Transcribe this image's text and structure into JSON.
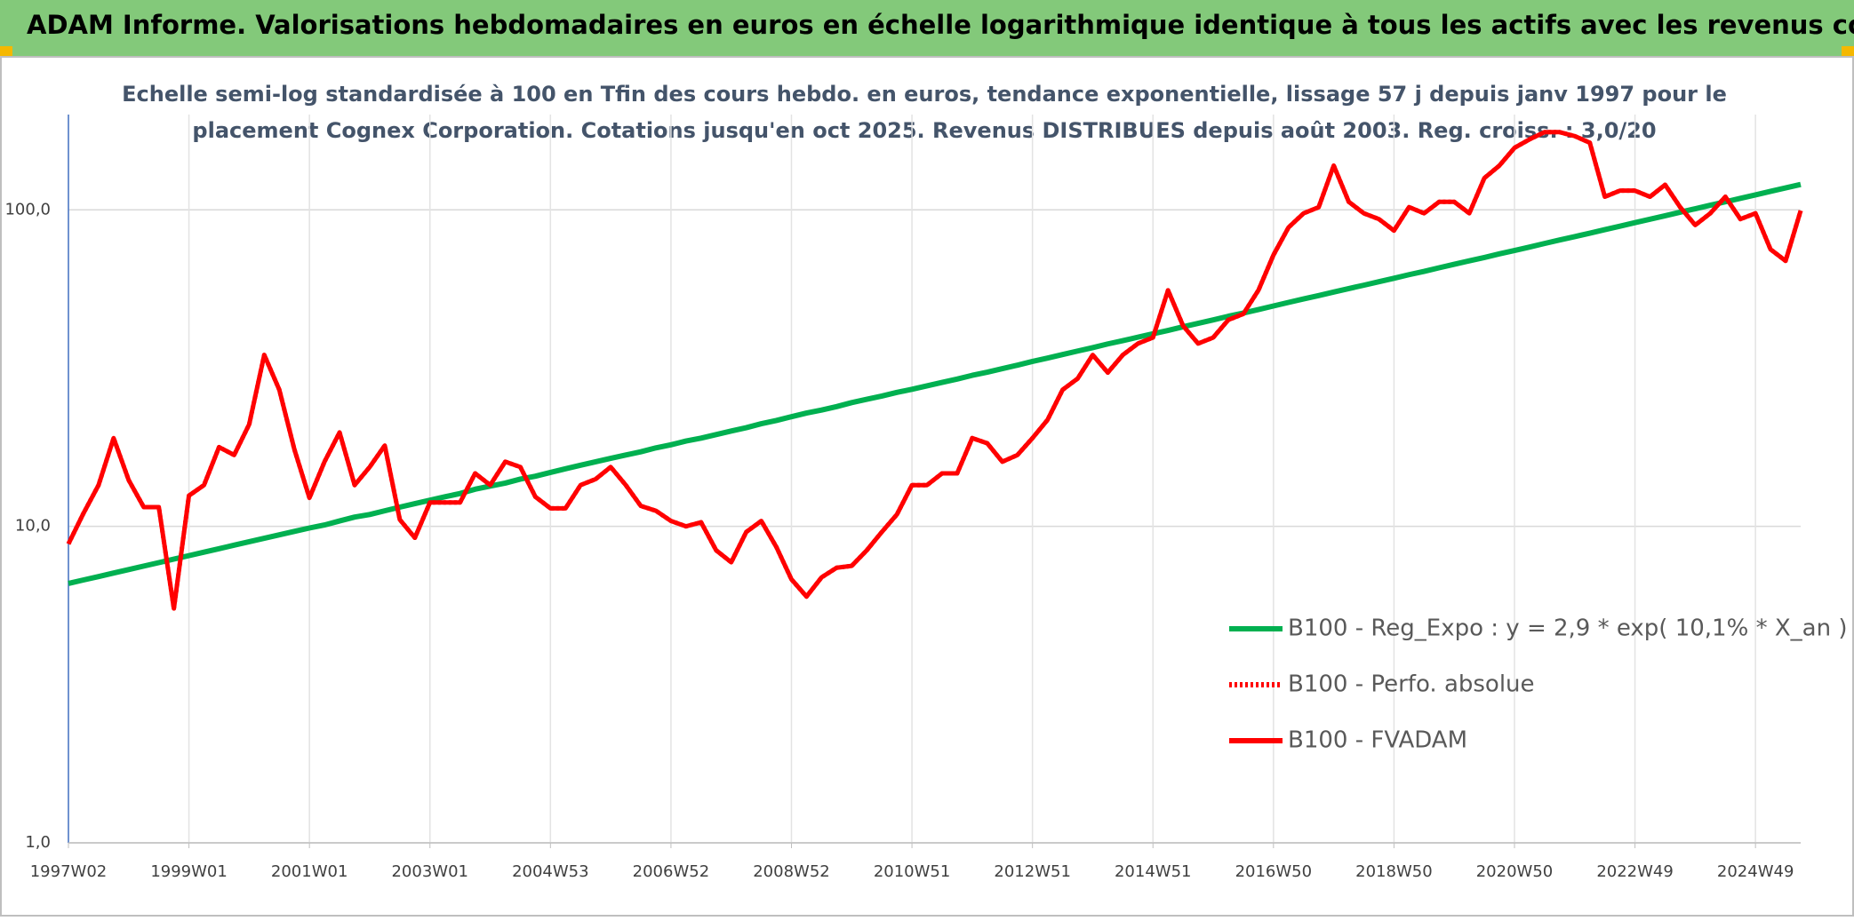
{
  "chart_data": {
    "type": "line",
    "title": "ADAM Informe. Valorisations hebdomadaires en euros en échelle logarithmique identique à tous les actifs avec les revenus connus distribués",
    "subtitle": [
      "Echelle semi-log standardisée à 100 en Tfin des cours hebdo. en euros, tendance exponentielle, lissage 57 j depuis janv 1997 pour le",
      "placement Cognex Corporation. Cotations jusqu'en oct 2025. Revenus DISTRIBUES depuis août 2003. Reg. croiss. : 3,0/20"
    ],
    "log_scale": true,
    "grid": true,
    "legend_position": "right",
    "ylim": [
      1,
      200
    ],
    "yticks": [
      {
        "value": 1,
        "label": "1,0"
      },
      {
        "value": 10,
        "label": "10,0"
      },
      {
        "value": 100,
        "label": "100,0"
      }
    ],
    "categories": [
      "1997W02",
      null,
      null,
      null,
      null,
      null,
      null,
      null,
      "1999W01",
      null,
      null,
      null,
      null,
      null,
      null,
      null,
      "2001W01",
      null,
      null,
      null,
      null,
      null,
      null,
      null,
      "2003W01",
      null,
      null,
      null,
      null,
      null,
      null,
      null,
      "2004W53",
      null,
      null,
      null,
      null,
      null,
      null,
      null,
      "2006W52",
      null,
      null,
      null,
      null,
      null,
      null,
      null,
      "2008W52",
      null,
      null,
      null,
      null,
      null,
      null,
      null,
      "2010W51",
      null,
      null,
      null,
      null,
      null,
      null,
      null,
      "2012W51",
      null,
      null,
      null,
      null,
      null,
      null,
      null,
      "2014W51",
      null,
      null,
      null,
      null,
      null,
      null,
      null,
      "2016W50",
      null,
      null,
      null,
      null,
      null,
      null,
      null,
      "2018W50",
      null,
      null,
      null,
      null,
      null,
      null,
      null,
      "2020W50",
      null,
      null,
      null,
      null,
      null,
      null,
      null,
      "2022W49",
      null,
      null,
      null,
      null,
      null,
      null,
      null,
      "2024W49",
      null,
      null,
      null
    ],
    "series": [
      {
        "name": "B100 - Reg_Expo : y = 2,9 * exp( 10,1% *  X_an )",
        "color": "#00b050",
        "style": "solid",
        "values": [
          6.6,
          6.77,
          6.94,
          7.12,
          7.3,
          7.49,
          7.68,
          7.88,
          8.08,
          8.29,
          8.5,
          8.72,
          8.94,
          9.17,
          9.4,
          9.64,
          9.88,
          10.1,
          10.4,
          10.7,
          10.9,
          11.2,
          11.5,
          11.8,
          12.1,
          12.4,
          12.7,
          13.1,
          13.4,
          13.7,
          14.1,
          14.4,
          14.8,
          15.2,
          15.6,
          16.0,
          16.4,
          16.8,
          17.2,
          17.7,
          18.1,
          18.6,
          19.0,
          19.5,
          20.0,
          20.5,
          21.1,
          21.6,
          22.2,
          22.8,
          23.3,
          23.9,
          24.6,
          25.2,
          25.8,
          26.5,
          27.1,
          27.8,
          28.5,
          29.2,
          30.0,
          30.7,
          31.5,
          32.3,
          33.2,
          34.0,
          34.9,
          35.8,
          36.7,
          37.7,
          38.6,
          39.6,
          40.6,
          41.6,
          42.7,
          43.8,
          44.9,
          46.1,
          47.2,
          48.4,
          49.7,
          51.0,
          52.3,
          53.6,
          55.0,
          56.4,
          57.8,
          59.3,
          60.8,
          62.4,
          63.9,
          65.6,
          67.3,
          69.0,
          70.7,
          72.6,
          74.4,
          76.3,
          78.3,
          80.3,
          82.3,
          84.4,
          86.6,
          88.8,
          91.1,
          93.4,
          95.8,
          98.3,
          100.8,
          103.4,
          106.0,
          108.7,
          111.5,
          114.4,
          117.3,
          120.3
        ]
      },
      {
        "name": "B100 - Perfo. absolue",
        "color": "#ff0000",
        "style": "dotted",
        "values": [
          8.8,
          11,
          13.5,
          19,
          14,
          11.5,
          11.5,
          5.5,
          12.5,
          13.5,
          17.8,
          16.8,
          21,
          34.8,
          27,
          17.5,
          12.3,
          16,
          19.8,
          13.5,
          15.4,
          18,
          10.5,
          9.2,
          11.9,
          11.9,
          11.9,
          14.7,
          13.5,
          16,
          15.4,
          12.4,
          11.4,
          11.4,
          13.5,
          14.1,
          15.4,
          13.5,
          11.6,
          11.2,
          10.4,
          10.0,
          10.3,
          8.4,
          7.7,
          9.6,
          10.4,
          8.6,
          6.8,
          6.0,
          6.9,
          7.4,
          7.5,
          8.4,
          9.6,
          10.9,
          13.5,
          13.5,
          14.7,
          14.7,
          19,
          18.3,
          16,
          16.8,
          19,
          21.7,
          27,
          29.3,
          34.8,
          30.6,
          34.8,
          37.8,
          39.5,
          55.7,
          43,
          37.8,
          39.5,
          44.9,
          46.9,
          55.7,
          72,
          88,
          97.5,
          101.9,
          138,
          106,
          97.5,
          93.5,
          86,
          102,
          97.5,
          106,
          106,
          97.5,
          126,
          138,
          157,
          167,
          176,
          176,
          171,
          163,
          110,
          115,
          115,
          110,
          120,
          102,
          89.5,
          97.5,
          110,
          93.5,
          97.5,
          75,
          69,
          99.4
        ]
      },
      {
        "name": "B100 - FVADAM",
        "color": "#ff0000",
        "style": "solid",
        "values": [
          8.8,
          11,
          13.5,
          19,
          14,
          11.5,
          11.5,
          5.5,
          12.5,
          13.5,
          17.8,
          16.8,
          21,
          34.8,
          27,
          17.5,
          12.3,
          16,
          19.8,
          13.5,
          15.4,
          18,
          10.5,
          9.2,
          11.9,
          11.9,
          11.9,
          14.7,
          13.5,
          16,
          15.4,
          12.4,
          11.4,
          11.4,
          13.5,
          14.1,
          15.4,
          13.5,
          11.6,
          11.2,
          10.4,
          10.0,
          10.3,
          8.4,
          7.7,
          9.6,
          10.4,
          8.6,
          6.8,
          6.0,
          6.9,
          7.4,
          7.5,
          8.4,
          9.6,
          10.9,
          13.5,
          13.5,
          14.7,
          14.7,
          19,
          18.3,
          16,
          16.8,
          19,
          21.7,
          27,
          29.3,
          34.8,
          30.6,
          34.8,
          37.8,
          39.5,
          55.7,
          43,
          37.8,
          39.5,
          44.9,
          46.9,
          55.7,
          72,
          88,
          97.5,
          101.9,
          138,
          106,
          97.5,
          93.5,
          86,
          102,
          97.5,
          106,
          106,
          97.5,
          126,
          138,
          157,
          167,
          176,
          176,
          171,
          163,
          110,
          115,
          115,
          110,
          120,
          102,
          89.5,
          97.5,
          110,
          93.5,
          97.5,
          75,
          69,
          99.4
        ]
      }
    ]
  }
}
